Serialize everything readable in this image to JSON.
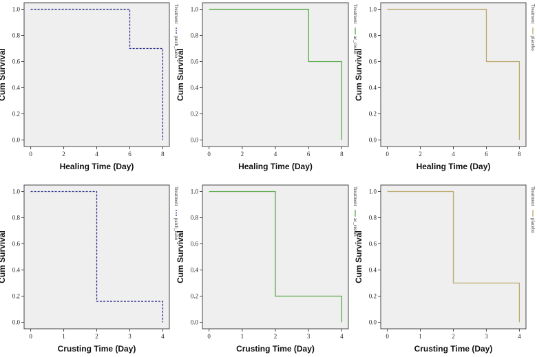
{
  "chart_data": [
    {
      "type": "line",
      "xlabel": "Healing Time (Day)",
      "ylabel": "Cum Survival",
      "xticks": [
        0,
        2,
        4,
        6,
        8
      ],
      "yticks": [
        0.0,
        0.2,
        0.4,
        0.6,
        0.8,
        1.0
      ],
      "xlim": [
        -0.4,
        8.4
      ],
      "ylim": [
        -0.05,
        1.05
      ],
      "legend": {
        "title": "Treatment",
        "entry": "patch_nano",
        "placement": "right"
      },
      "series": [
        {
          "name": "patch_nano",
          "color": "#2b2b8c",
          "dashed": true,
          "x": [
            0,
            6,
            6,
            8,
            8
          ],
          "y": [
            1.0,
            1.0,
            0.7,
            0.7,
            0.0
          ]
        }
      ]
    },
    {
      "type": "line",
      "xlabel": "Healing Time (Day)",
      "ylabel": "Cum Survival",
      "xticks": [
        0,
        2,
        4,
        6,
        8
      ],
      "yticks": [
        0.0,
        0.2,
        0.4,
        0.6,
        0.8,
        1.0
      ],
      "xlim": [
        -0.4,
        8.4
      ],
      "ylim": [
        -0.05,
        1.05
      ],
      "legend": {
        "title": "Treatment",
        "entry": "ac_cream",
        "placement": "right"
      },
      "series": [
        {
          "name": "ac_cream",
          "color": "#5aa84a",
          "dashed": false,
          "x": [
            0,
            6,
            6,
            8,
            8
          ],
          "y": [
            1.0,
            1.0,
            0.6,
            0.6,
            0.0
          ]
        }
      ]
    },
    {
      "type": "line",
      "xlabel": "Healing Time (Day)",
      "ylabel": "Cum Survival",
      "xticks": [
        0,
        2,
        4,
        6,
        8
      ],
      "yticks": [
        0.0,
        0.2,
        0.4,
        0.6,
        0.8,
        1.0
      ],
      "xlim": [
        -0.4,
        8.4
      ],
      "ylim": [
        -0.05,
        1.05
      ],
      "legend": {
        "title": "Treatment",
        "entry": "placebo",
        "placement": "right"
      },
      "series": [
        {
          "name": "placebo",
          "color": "#b9a86a",
          "dashed": false,
          "x": [
            0,
            6,
            6,
            8,
            8
          ],
          "y": [
            1.0,
            1.0,
            0.6,
            0.6,
            0.0
          ]
        }
      ]
    },
    {
      "type": "line",
      "xlabel": "Crusting Time (Day)",
      "ylabel": "Cum Survival",
      "xticks": [
        0,
        1,
        2,
        3,
        4
      ],
      "yticks": [
        0.0,
        0.2,
        0.4,
        0.6,
        0.8,
        1.0
      ],
      "xlim": [
        -0.2,
        4.2
      ],
      "ylim": [
        -0.05,
        1.05
      ],
      "legend": {
        "title": "Treatment",
        "entry": "patch_nano",
        "placement": "right"
      },
      "series": [
        {
          "name": "patch_nano",
          "color": "#2b2b8c",
          "dashed": true,
          "x": [
            0,
            2,
            2,
            4,
            4
          ],
          "y": [
            1.0,
            1.0,
            0.16,
            0.16,
            0.0
          ]
        }
      ]
    },
    {
      "type": "line",
      "xlabel": "Crusting Time (Day)",
      "ylabel": "Cum Survival",
      "xticks": [
        0,
        1,
        2,
        3,
        4
      ],
      "yticks": [
        0.0,
        0.2,
        0.4,
        0.6,
        0.8,
        1.0
      ],
      "xlim": [
        -0.2,
        4.2
      ],
      "ylim": [
        -0.05,
        1.05
      ],
      "legend": {
        "title": "Treatment",
        "entry": "ac_cream",
        "placement": "right"
      },
      "series": [
        {
          "name": "ac_cream",
          "color": "#5aa84a",
          "dashed": false,
          "x": [
            0,
            2,
            2,
            4,
            4
          ],
          "y": [
            1.0,
            1.0,
            0.2,
            0.2,
            0.0
          ]
        }
      ]
    },
    {
      "type": "line",
      "xlabel": "Crusting Time (Day)",
      "ylabel": "Cum Survival",
      "xticks": [
        0,
        1,
        2,
        3,
        4
      ],
      "yticks": [
        0.0,
        0.2,
        0.4,
        0.6,
        0.8,
        1.0
      ],
      "xlim": [
        -0.2,
        4.2
      ],
      "ylim": [
        -0.05,
        1.05
      ],
      "legend": {
        "title": "Treatment",
        "entry": "placebo",
        "placement": "right"
      },
      "series": [
        {
          "name": "placebo",
          "color": "#b9a86a",
          "dashed": false,
          "x": [
            0,
            2,
            2,
            4,
            4
          ],
          "y": [
            1.0,
            1.0,
            0.3,
            0.3,
            0.0
          ]
        }
      ]
    }
  ]
}
